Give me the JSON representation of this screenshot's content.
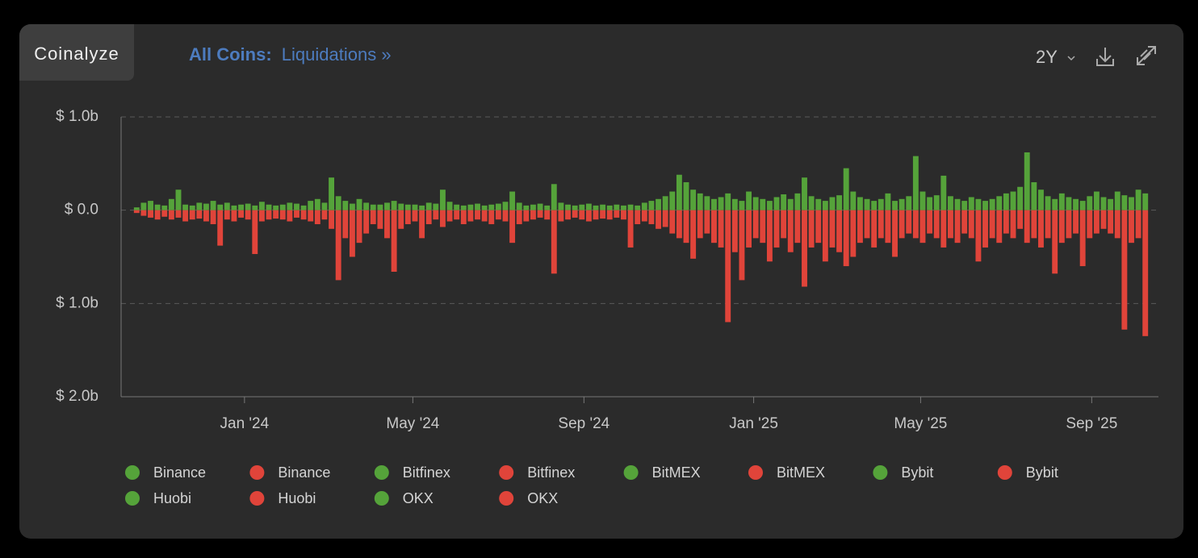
{
  "header": {
    "brand": "Coinalyze",
    "title_bold": "All Coins:",
    "title": "Liquidations »",
    "range": "2Y"
  },
  "chart_data": {
    "type": "bar",
    "categories": [
      null,
      null,
      null,
      null,
      null,
      null,
      null,
      null,
      null,
      null,
      null,
      null,
      null,
      null,
      null,
      null,
      null,
      null,
      null,
      null,
      null,
      null,
      null,
      null,
      null,
      null,
      null,
      null,
      null,
      null,
      null,
      null,
      null,
      null,
      null,
      null,
      null,
      null,
      null,
      null,
      null,
      null,
      null,
      null,
      null,
      null,
      null,
      null,
      null,
      null,
      null,
      null,
      null,
      null,
      null,
      null,
      null,
      null,
      null,
      null,
      null,
      null,
      null,
      null,
      null,
      null,
      null,
      null,
      null,
      null,
      null,
      null,
      null,
      null,
      null,
      null,
      null,
      null,
      null,
      null,
      null,
      null,
      null,
      null,
      null,
      null,
      null,
      null,
      null,
      null,
      null,
      null,
      null,
      null,
      null,
      null,
      null,
      null,
      null,
      null,
      null,
      null,
      null,
      null,
      null,
      null,
      null,
      null,
      null,
      null,
      null,
      null,
      null,
      null,
      null,
      null,
      null,
      null,
      null,
      null,
      null,
      null,
      null,
      null,
      null,
      null,
      null,
      null,
      null,
      null,
      null,
      null,
      null,
      null,
      null,
      null,
      null,
      null,
      null,
      null,
      null,
      null,
      null,
      null,
      null,
      null
    ],
    "series": [
      {
        "color": "#55a33a",
        "values": [
          0.03,
          0.08,
          0.1,
          0.06,
          0.05,
          0.12,
          0.22,
          0.06,
          0.05,
          0.08,
          0.07,
          0.1,
          0.06,
          0.08,
          0.05,
          0.06,
          0.07,
          0.05,
          0.09,
          0.06,
          0.05,
          0.06,
          0.08,
          0.07,
          0.05,
          0.1,
          0.12,
          0.08,
          0.35,
          0.15,
          0.1,
          0.07,
          0.12,
          0.08,
          0.06,
          0.06,
          0.08,
          0.1,
          0.07,
          0.06,
          0.06,
          0.05,
          0.08,
          0.07,
          0.22,
          0.09,
          0.06,
          0.05,
          0.06,
          0.07,
          0.05,
          0.06,
          0.07,
          0.09,
          0.2,
          0.08,
          0.05,
          0.06,
          0.07,
          0.05,
          0.28,
          0.08,
          0.06,
          0.05,
          0.06,
          0.07,
          0.05,
          0.06,
          0.05,
          0.06,
          0.05,
          0.06,
          0.05,
          0.08,
          0.1,
          0.12,
          0.15,
          0.2,
          0.38,
          0.3,
          0.22,
          0.18,
          0.15,
          0.12,
          0.14,
          0.18,
          0.12,
          0.1,
          0.2,
          0.14,
          0.12,
          0.1,
          0.14,
          0.17,
          0.12,
          0.18,
          0.35,
          0.15,
          0.12,
          0.1,
          0.14,
          0.16,
          0.45,
          0.2,
          0.14,
          0.12,
          0.1,
          0.12,
          0.18,
          0.1,
          0.12,
          0.15,
          0.58,
          0.2,
          0.14,
          0.16,
          0.37,
          0.15,
          0.12,
          0.1,
          0.14,
          0.12,
          0.1,
          0.12,
          0.15,
          0.18,
          0.2,
          0.25,
          0.62,
          0.3,
          0.22,
          0.15,
          0.12,
          0.18,
          0.14,
          0.12,
          0.1,
          0.15,
          0.2,
          0.14,
          0.12,
          0.2,
          0.16,
          0.14,
          0.22,
          0.18
        ]
      },
      {
        "color": "#e0443a",
        "values": [
          -0.03,
          -0.06,
          -0.08,
          -0.1,
          -0.07,
          -0.1,
          -0.08,
          -0.12,
          -0.1,
          -0.09,
          -0.12,
          -0.15,
          -0.38,
          -0.1,
          -0.12,
          -0.08,
          -0.1,
          -0.47,
          -0.12,
          -0.1,
          -0.09,
          -0.1,
          -0.12,
          -0.08,
          -0.1,
          -0.12,
          -0.15,
          -0.1,
          -0.2,
          -0.75,
          -0.3,
          -0.5,
          -0.35,
          -0.25,
          -0.15,
          -0.2,
          -0.3,
          -0.66,
          -0.2,
          -0.15,
          -0.12,
          -0.3,
          -0.15,
          -0.1,
          -0.18,
          -0.12,
          -0.1,
          -0.15,
          -0.12,
          -0.1,
          -0.12,
          -0.15,
          -0.1,
          -0.12,
          -0.35,
          -0.15,
          -0.12,
          -0.1,
          -0.08,
          -0.1,
          -0.68,
          -0.12,
          -0.1,
          -0.08,
          -0.1,
          -0.12,
          -0.1,
          -0.09,
          -0.1,
          -0.08,
          -0.1,
          -0.4,
          -0.15,
          -0.12,
          -0.15,
          -0.2,
          -0.18,
          -0.25,
          -0.3,
          -0.35,
          -0.52,
          -0.3,
          -0.25,
          -0.35,
          -0.4,
          -1.2,
          -0.45,
          -0.75,
          -0.4,
          -0.3,
          -0.35,
          -0.55,
          -0.4,
          -0.3,
          -0.45,
          -0.35,
          -0.82,
          -0.4,
          -0.35,
          -0.55,
          -0.4,
          -0.45,
          -0.6,
          -0.5,
          -0.35,
          -0.3,
          -0.4,
          -0.3,
          -0.35,
          -0.5,
          -0.3,
          -0.25,
          -0.3,
          -0.35,
          -0.25,
          -0.3,
          -0.4,
          -0.3,
          -0.35,
          -0.25,
          -0.3,
          -0.55,
          -0.4,
          -0.3,
          -0.35,
          -0.25,
          -0.3,
          -0.2,
          -0.35,
          -0.3,
          -0.4,
          -0.3,
          -0.68,
          -0.35,
          -0.3,
          -0.25,
          -0.6,
          -0.3,
          -0.25,
          -0.2,
          -0.25,
          -0.3,
          -1.28,
          -0.35,
          -0.3,
          -1.35
        ]
      }
    ],
    "legend": [
      {
        "name": "Binance",
        "color": "#55a33a"
      },
      {
        "name": "Binance",
        "color": "#e0443a"
      },
      {
        "name": "Bitfinex",
        "color": "#55a33a"
      },
      {
        "name": "Bitfinex",
        "color": "#e0443a"
      },
      {
        "name": "BitMEX",
        "color": "#55a33a"
      },
      {
        "name": "BitMEX",
        "color": "#e0443a"
      },
      {
        "name": "Bybit",
        "color": "#55a33a"
      },
      {
        "name": "Bybit",
        "color": "#e0443a"
      },
      {
        "name": "Huobi",
        "color": "#55a33a"
      },
      {
        "name": "Huobi",
        "color": "#e0443a"
      },
      {
        "name": "OKX",
        "color": "#55a33a"
      },
      {
        "name": "OKX",
        "color": "#e0443a"
      }
    ],
    "xlim": [
      -1.74,
      147.39
    ],
    "xticks": [
      {
        "value": 16,
        "label": "Jan '24"
      },
      {
        "value": 40.2,
        "label": "May '24"
      },
      {
        "value": 64.8,
        "label": "Sep '24"
      },
      {
        "value": 89.2,
        "label": "Jan '25"
      },
      {
        "value": 113.2,
        "label": "May '25"
      },
      {
        "value": 137.8,
        "label": "Sep '25"
      }
    ],
    "ylim": [
      -2,
      1
    ],
    "yticks": [
      {
        "value": 1,
        "label": "$ 1.0b"
      },
      {
        "value": 0,
        "label": "$ 0.0"
      },
      {
        "value": -1,
        "label": "$ 1.0b"
      },
      {
        "value": -2,
        "label": "$ 2.0b"
      }
    ],
    "grid": true
  }
}
